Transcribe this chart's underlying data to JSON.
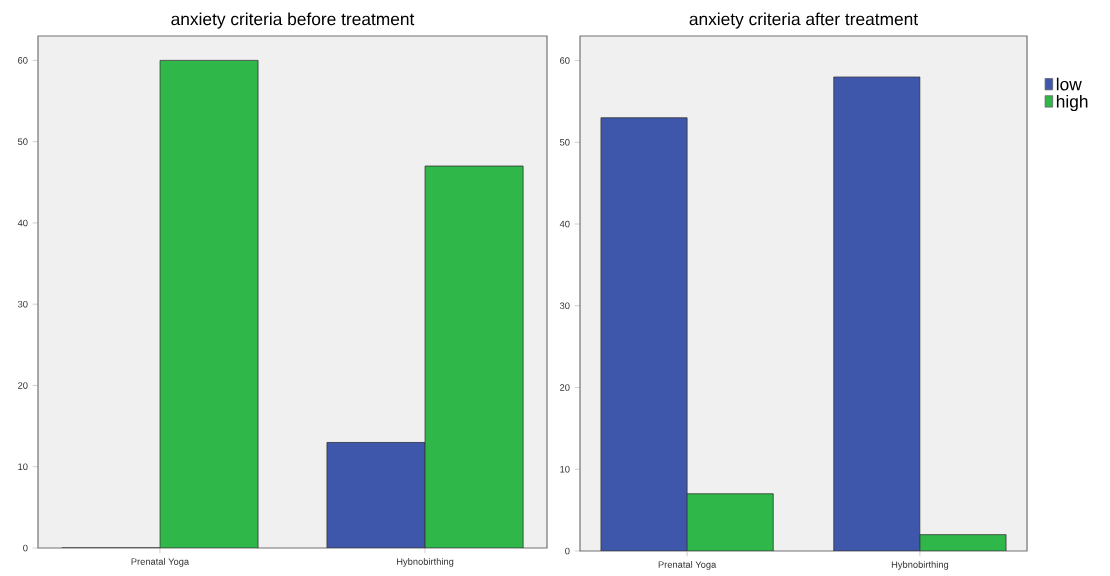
{
  "chart_data": [
    {
      "type": "bar",
      "title": "anxiety criteria before treatment",
      "categories": [
        "Prenatal Yoga",
        "Hybnobirthing"
      ],
      "series": [
        {
          "color": "#3f57aa",
          "values": [
            0,
            13
          ]
        },
        {
          "color": "#2fb74a",
          "values": [
            60,
            47
          ]
        }
      ],
      "ylim": [
        0,
        63
      ],
      "yticks": [
        0,
        10,
        20,
        30,
        40,
        50,
        60
      ]
    },
    {
      "type": "bar",
      "title": "anxiety criteria after treatment",
      "categories": [
        "Prenatal Yoga",
        "Hybnobirthing"
      ],
      "series": [
        {
          "name": "low",
          "color": "#3f57aa",
          "values": [
            53,
            58
          ]
        },
        {
          "name": "high",
          "color": "#2fb74a",
          "values": [
            7,
            2
          ]
        }
      ],
      "ylim": [
        0,
        63
      ],
      "yticks": [
        0,
        10,
        20,
        30,
        40,
        50,
        60
      ],
      "legend": "top right"
    }
  ]
}
